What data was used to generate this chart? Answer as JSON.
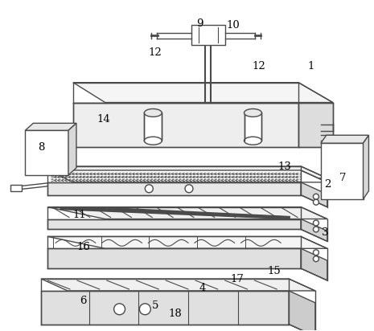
{
  "background_color": "#ffffff",
  "line_color": "#4a4a4a",
  "line_width": 1.0,
  "fig_w": 4.65,
  "fig_h": 4.12,
  "dpi": 100
}
